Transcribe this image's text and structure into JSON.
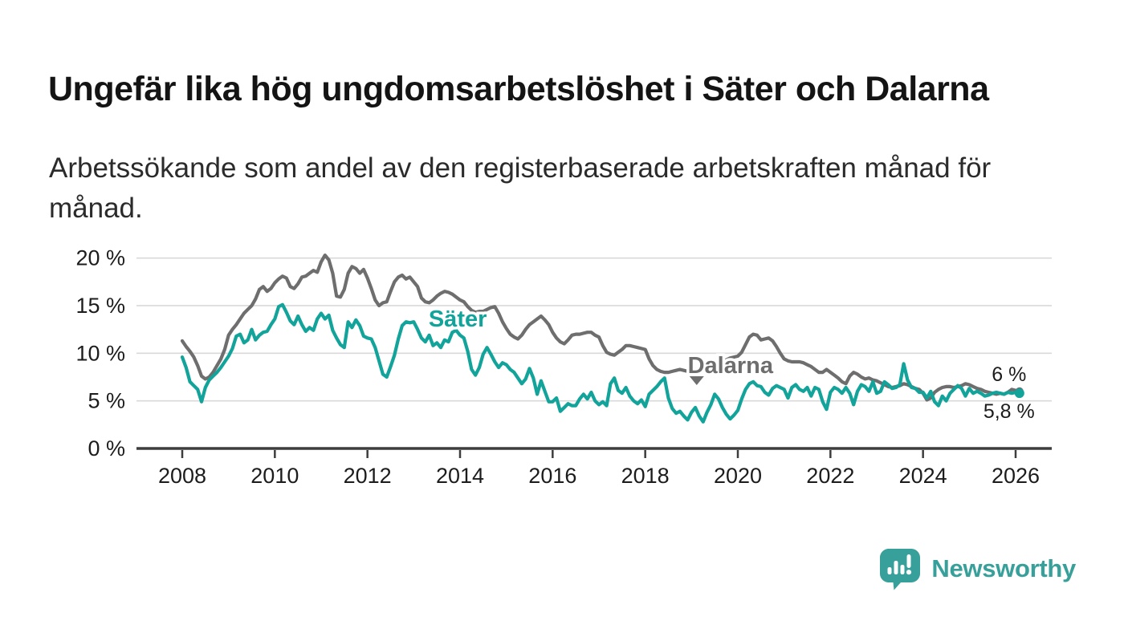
{
  "header": {
    "title": "Ungefär lika hög ungdomsarbetslöshet i Säter och Dalarna",
    "subtitle": "Arbetssökande som andel av den registerbaserade arbetskraften månad för\nmånad."
  },
  "branding": {
    "name": "Newsworthy",
    "color": "#37a09a",
    "icon": "bar-chart-speech-bubble-icon"
  },
  "colors": {
    "sater_line": "#12a39a",
    "dalarna_line": "#6e6e6e",
    "gridline": "#d9d9d9",
    "axis": "#3d3d3d",
    "axis_text": "#1c1c1c",
    "background": "#ffffff"
  },
  "chart_data": {
    "type": "line",
    "title": "Ungefär lika hög ungdomsarbetslöshet i Säter och Dalarna",
    "subtitle": "Arbetssökande som andel av den registerbaserade arbetskraften månad för månad.",
    "x_unit": "month",
    "x_start": "2008-01",
    "x_end": "2026-02",
    "x_ticks": [
      2008,
      2010,
      2012,
      2014,
      2016,
      2018,
      2020,
      2022,
      2024,
      2026
    ],
    "y_ticks": [
      0,
      5,
      10,
      15,
      20
    ],
    "y_tick_format": "{v} %",
    "ylim": [
      0,
      21
    ],
    "grid": true,
    "legend_position": "inline-labels",
    "series": [
      {
        "name": "Dalarna",
        "color": "#6e6e6e",
        "end_label": "6 %",
        "end_label_side": "above",
        "end_value": 6.0,
        "values": [
          11.3,
          10.7,
          10.2,
          9.6,
          8.7,
          7.6,
          7.3,
          7.5,
          8.0,
          8.7,
          9.4,
          10.4,
          11.9,
          12.5,
          13.0,
          13.6,
          14.2,
          14.6,
          15.0,
          15.7,
          16.7,
          17.0,
          16.5,
          16.8,
          17.4,
          17.8,
          18.1,
          17.9,
          17.0,
          16.8,
          17.3,
          18.0,
          18.1,
          18.4,
          18.7,
          18.5,
          19.6,
          20.3,
          19.8,
          18.4,
          16.0,
          15.9,
          16.7,
          18.4,
          19.1,
          18.9,
          18.4,
          18.8,
          17.9,
          16.8,
          15.6,
          15.0,
          15.3,
          15.4,
          16.5,
          17.5,
          18.0,
          18.2,
          17.8,
          18.0,
          17.5,
          17.0,
          15.8,
          15.4,
          15.3,
          15.6,
          16.0,
          16.3,
          16.5,
          16.4,
          16.2,
          15.9,
          15.6,
          15.4,
          14.9,
          14.5,
          14.3,
          14.4,
          14.4,
          14.6,
          14.8,
          14.9,
          14.2,
          13.3,
          12.6,
          12.0,
          11.7,
          11.5,
          11.9,
          12.5,
          13.0,
          13.3,
          13.6,
          13.9,
          13.5,
          13.0,
          12.2,
          11.6,
          11.2,
          11.0,
          11.4,
          11.9,
          12.0,
          12.0,
          12.1,
          12.2,
          12.2,
          11.9,
          11.7,
          10.8,
          10.1,
          9.9,
          9.8,
          10.1,
          10.4,
          10.8,
          10.8,
          10.7,
          10.6,
          10.5,
          10.4,
          9.4,
          8.7,
          8.3,
          8.1,
          8.0,
          8.0,
          8.1,
          8.2,
          8.3,
          8.2,
          8.1,
          8.2,
          8.3,
          8.3,
          8.4,
          8.5,
          8.5,
          8.6,
          8.8,
          9.1,
          9.3,
          9.5,
          9.6,
          9.7,
          10.1,
          10.9,
          11.7,
          12.0,
          11.9,
          11.4,
          11.5,
          11.6,
          11.3,
          10.7,
          10.0,
          9.4,
          9.2,
          9.1,
          9.1,
          9.1,
          9.0,
          8.8,
          8.6,
          8.3,
          8.0,
          8.0,
          8.3,
          8.0,
          7.7,
          7.4,
          7.0,
          6.8,
          7.6,
          8.0,
          7.8,
          7.5,
          7.3,
          7.4,
          7.2,
          7.1,
          6.9,
          6.7,
          6.5,
          6.4,
          6.5,
          6.6,
          6.8,
          6.7,
          6.5,
          6.3,
          6.2,
          5.8,
          5.1,
          5.3,
          5.9,
          6.2,
          6.4,
          6.5,
          6.5,
          6.4,
          6.5,
          6.6,
          6.8,
          6.7,
          6.5,
          6.3,
          6.2,
          6.0,
          5.9,
          5.8,
          5.7,
          5.8,
          5.7,
          5.9,
          6.2,
          6.1,
          6.0
        ]
      },
      {
        "name": "Säter",
        "color": "#12a39a",
        "end_label": "5,8 %",
        "end_label_side": "below",
        "end_value": 5.8,
        "values": [
          9.6,
          8.5,
          7.0,
          6.6,
          6.2,
          4.9,
          6.4,
          7.2,
          7.6,
          8.0,
          8.5,
          9.1,
          9.7,
          10.5,
          11.8,
          12.0,
          11.1,
          11.4,
          12.5,
          11.4,
          11.9,
          12.2,
          12.3,
          13.0,
          13.6,
          14.9,
          15.1,
          14.3,
          13.4,
          13.0,
          13.9,
          13.0,
          12.3,
          12.7,
          12.4,
          13.6,
          14.2,
          13.6,
          14.0,
          12.4,
          11.6,
          10.9,
          10.6,
          13.3,
          12.7,
          13.5,
          12.9,
          11.8,
          11.6,
          11.5,
          10.6,
          9.2,
          7.8,
          7.5,
          8.6,
          9.8,
          11.5,
          12.9,
          13.3,
          13.2,
          13.3,
          12.5,
          11.6,
          11.2,
          11.9,
          10.8,
          11.1,
          10.6,
          11.4,
          11.2,
          12.2,
          12.4,
          11.9,
          11.6,
          10.2,
          8.3,
          7.7,
          8.5,
          9.9,
          10.6,
          9.9,
          9.1,
          8.5,
          9.0,
          8.8,
          8.3,
          8.0,
          7.4,
          6.8,
          7.3,
          8.4,
          7.4,
          5.7,
          7.1,
          6.0,
          4.9,
          4.9,
          5.3,
          3.9,
          4.3,
          4.7,
          4.5,
          4.5,
          5.2,
          5.7,
          5.2,
          5.9,
          5.0,
          4.6,
          4.9,
          4.5,
          6.8,
          7.4,
          6.1,
          5.8,
          6.4,
          5.5,
          5.0,
          4.7,
          5.1,
          4.4,
          5.7,
          6.1,
          6.5,
          7.0,
          7.4,
          5.3,
          4.2,
          3.7,
          3.9,
          3.4,
          3.0,
          3.8,
          4.3,
          3.4,
          2.8,
          3.8,
          4.6,
          5.7,
          5.2,
          4.3,
          3.6,
          3.1,
          3.5,
          4.0,
          5.2,
          6.2,
          6.8,
          7.0,
          6.6,
          6.5,
          5.9,
          5.6,
          6.3,
          6.6,
          6.4,
          6.2,
          5.3,
          6.4,
          6.7,
          6.2,
          6.0,
          6.4,
          5.5,
          6.4,
          6.2,
          4.9,
          4.1,
          5.9,
          6.4,
          6.2,
          5.8,
          6.4,
          5.8,
          4.6,
          6.0,
          6.7,
          6.5,
          6.0,
          7.0,
          5.8,
          6.0,
          7.0,
          6.7,
          6.3,
          6.4,
          6.7,
          8.9,
          7.2,
          6.4,
          6.3,
          5.9,
          5.9,
          5.3,
          6.0,
          4.9,
          4.5,
          5.5,
          5.0,
          5.8,
          6.2,
          6.6,
          6.3,
          5.5,
          6.3,
          5.8,
          6.0,
          5.8,
          5.5,
          5.6,
          5.8,
          5.9,
          5.8,
          5.7,
          5.9,
          5.8,
          5.9,
          5.8
        ]
      }
    ],
    "annotations": [
      {
        "text": "Säter",
        "color": "#12a39a",
        "x": 2013.95,
        "y": 13.65,
        "bold": true,
        "caret": false
      },
      {
        "text": "Dalarna",
        "color": "#6e6e6e",
        "x": 2019.84,
        "y": 8.76,
        "bold": true,
        "caret": true
      }
    ]
  }
}
